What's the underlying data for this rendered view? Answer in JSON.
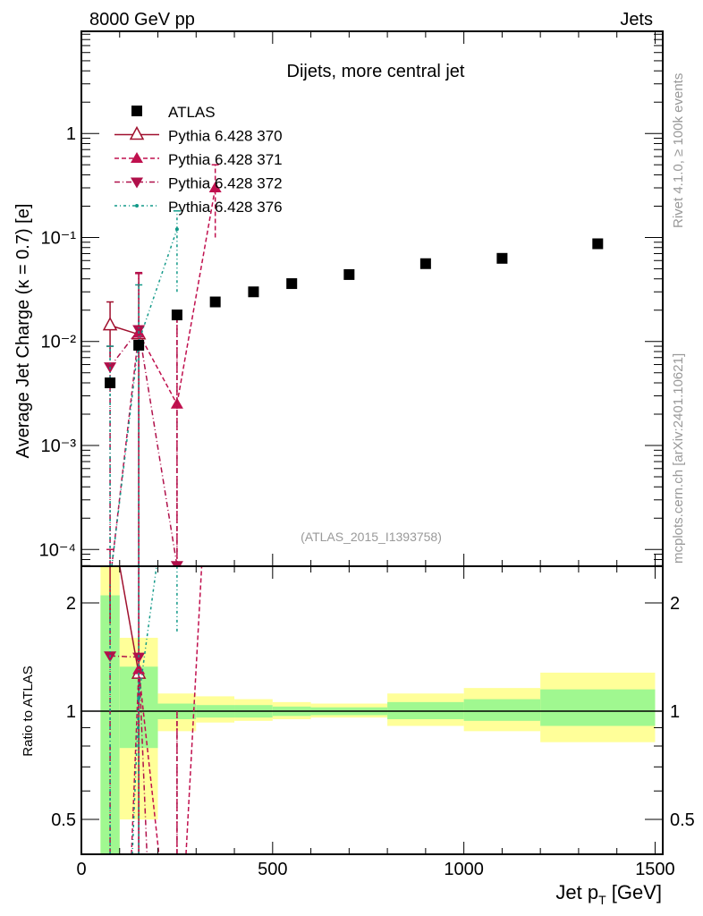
{
  "header": {
    "left": "8000 GeV pp",
    "right": "Jets"
  },
  "side_labels": {
    "rivet": "Rivet 4.1.0, ≥ 100k events",
    "mcplots": "mcplots.cern.ch [arXiv:2401.10621]"
  },
  "chart_data": {
    "type": "scatter",
    "title": "Dijets, more central jet",
    "analysis_tag": "(ATLAS_2015_I1393758)",
    "xlabel": "Jet p_T [GeV]",
    "xlabel_main": "Jet p",
    "xlabel_sub": "T",
    "xlabel_unit": "[GeV]",
    "ylabel": "Average Jet Charge (κ = 0.7) [e]",
    "ratio_ylabel": "Ratio to ATLAS",
    "xlim": [
      0,
      1520
    ],
    "ylim": [
      6.9e-05,
      9.6
    ],
    "yscale": "log",
    "ratio_ylim": [
      0.4,
      2.53
    ],
    "x_ticks": [
      "0",
      "500",
      "1000",
      "1500"
    ],
    "x_tick_values": [
      0,
      500,
      1000,
      1500
    ],
    "y_ticks": [
      "10⁻⁴",
      "10⁻³",
      "10⁻²",
      "10⁻¹",
      "1"
    ],
    "y_tick_values": [
      0.0001,
      0.001,
      0.01,
      0.1,
      1
    ],
    "ratio_ticks": [
      "0.5",
      "1",
      "2"
    ],
    "ratio_tick_values": [
      0.5,
      1,
      2
    ],
    "bins": [
      [
        50,
        100
      ],
      [
        100,
        200
      ],
      [
        200,
        300
      ],
      [
        300,
        400
      ],
      [
        400,
        500
      ],
      [
        500,
        600
      ],
      [
        600,
        800
      ],
      [
        800,
        1000
      ],
      [
        1000,
        1200
      ],
      [
        1200,
        1500
      ]
    ],
    "reference": {
      "name": "ATLAS",
      "x": [
        75,
        150,
        250,
        350,
        450,
        550,
        700,
        900,
        1100,
        1350
      ],
      "y": [
        0.004,
        0.0092,
        0.018,
        0.024,
        0.03,
        0.036,
        0.044,
        0.056,
        0.063,
        0.087
      ],
      "band_stat": [
        [
          0.4,
          2.1
        ],
        [
          0.79,
          1.33
        ],
        [
          0.95,
          1.05
        ],
        [
          0.96,
          1.04
        ],
        [
          0.96,
          1.04
        ],
        [
          0.97,
          1.03
        ],
        [
          0.975,
          1.025
        ],
        [
          0.95,
          1.06
        ],
        [
          0.94,
          1.08
        ],
        [
          0.91,
          1.15
        ]
      ],
      "band_total": [
        [
          0.4,
          2.6
        ],
        [
          0.5,
          1.6
        ],
        [
          0.88,
          1.12
        ],
        [
          0.93,
          1.1
        ],
        [
          0.94,
          1.08
        ],
        [
          0.95,
          1.06
        ],
        [
          0.96,
          1.05
        ],
        [
          0.91,
          1.12
        ],
        [
          0.88,
          1.16
        ],
        [
          0.82,
          1.28
        ]
      ]
    },
    "series": [
      {
        "name": "Pythia 6.428 370",
        "color": "#a0102e",
        "marker": "triangle-open",
        "dash": "",
        "x": [
          75,
          150
        ],
        "y": [
          0.0143,
          0.0117
        ],
        "err": [
          [
            0.007,
            0.024
          ],
          [
            1e-05,
            0.045
          ]
        ]
      },
      {
        "name": "Pythia 6.428 371",
        "color": "#c0104e",
        "marker": "triangle-up",
        "dash": "5,3",
        "x": [
          75,
          150,
          250,
          350
        ],
        "y": [
          5e-05,
          0.012,
          0.0025,
          0.3
        ],
        "err": [
          [
            1e-05,
            0.0001
          ],
          [
            1e-05,
            0.045
          ],
          [
            1e-05,
            0.018
          ],
          [
            0.1,
            0.5
          ]
        ]
      },
      {
        "name": "Pythia 6.428 372",
        "color": "#b0104a",
        "marker": "triangle-down",
        "dash": "6,3,1,3",
        "x": [
          75,
          150,
          250
        ],
        "y": [
          0.0057,
          0.013,
          7e-05
        ],
        "err": [
          [
            1e-05,
            0.009
          ],
          [
            1e-05,
            0.046
          ],
          [
            1e-05,
            0.018
          ]
        ]
      },
      {
        "name": "Pythia 6.428 376",
        "color": "#119988",
        "marker": "dot",
        "dash": "3,3,1,3",
        "x": [
          75,
          150,
          250
        ],
        "y": [
          5e-05,
          0.01,
          0.12
        ],
        "err": [
          [
            1e-05,
            0.009
          ],
          [
            1e-05,
            0.035
          ],
          [
            0.03,
            0.18
          ]
        ]
      }
    ],
    "legend_position": "top-left",
    "colors": {
      "band_stat": "#a0f890",
      "band_total": "#ffff99"
    }
  }
}
